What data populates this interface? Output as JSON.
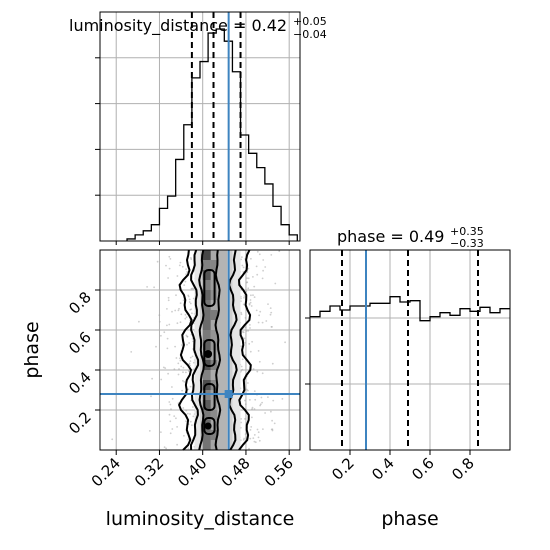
{
  "chart_data": {
    "type": "corner",
    "colors": {
      "truth": "#3e84c0",
      "hist": "#000000",
      "quantile": "#000000",
      "scatter": "#a6a6a6",
      "density_dark": "#000000",
      "density_light": "#ffffff"
    },
    "grid": true,
    "parameters": [
      {
        "name": "luminosity_distance",
        "median": "0.42",
        "plus": "+0.05",
        "minus": "−0.04",
        "title_prefix": "luminosity_distance = ",
        "range": [
          0.21,
          0.58
        ],
        "ticks": [
          "0.24",
          "0.32",
          "0.40",
          "0.48",
          "0.56"
        ],
        "tick_values": [
          0.24,
          0.32,
          0.4,
          0.48,
          0.56
        ],
        "quantiles": [
          0.38,
          0.42,
          0.47
        ],
        "truth": 0.448
      },
      {
        "name": "phase",
        "median": "0.49",
        "plus": "+0.35",
        "minus": "−0.33",
        "title_prefix": "phase = ",
        "range": [
          0.0,
          1.0
        ],
        "ticks": [
          "0.2",
          "0.4",
          "0.6",
          "0.8"
        ],
        "tick_values": [
          0.2,
          0.4,
          0.6,
          0.8
        ],
        "quantiles": [
          0.16,
          0.49,
          0.84
        ],
        "truth": 0.28
      }
    ],
    "hist_luminosity_distance": {
      "bin_edges": [
        0.26,
        0.275,
        0.29,
        0.305,
        0.32,
        0.335,
        0.35,
        0.365,
        0.38,
        0.395,
        0.41,
        0.425,
        0.44,
        0.455,
        0.47,
        0.485,
        0.5,
        0.515,
        0.53,
        0.545,
        0.56,
        0.575
      ],
      "counts": [
        1,
        3,
        5,
        8,
        16,
        22,
        40,
        57,
        80,
        88,
        102,
        104,
        98,
        83,
        52,
        43,
        36,
        28,
        17,
        8,
        3
      ]
    },
    "hist_phase": {
      "bin_edges": [
        0.0,
        0.05,
        0.1,
        0.15,
        0.2,
        0.25,
        0.3,
        0.35,
        0.4,
        0.45,
        0.5,
        0.55,
        0.6,
        0.65,
        0.7,
        0.75,
        0.8,
        0.85,
        0.9,
        0.95,
        1.0
      ],
      "counts": [
        100,
        104,
        108,
        105,
        108,
        108,
        110,
        110,
        115,
        111,
        112,
        97,
        100,
        103,
        101,
        106,
        104,
        107,
        103,
        106
      ]
    },
    "scatter_2d": {
      "x": "luminosity_distance",
      "y": "phase"
    }
  }
}
